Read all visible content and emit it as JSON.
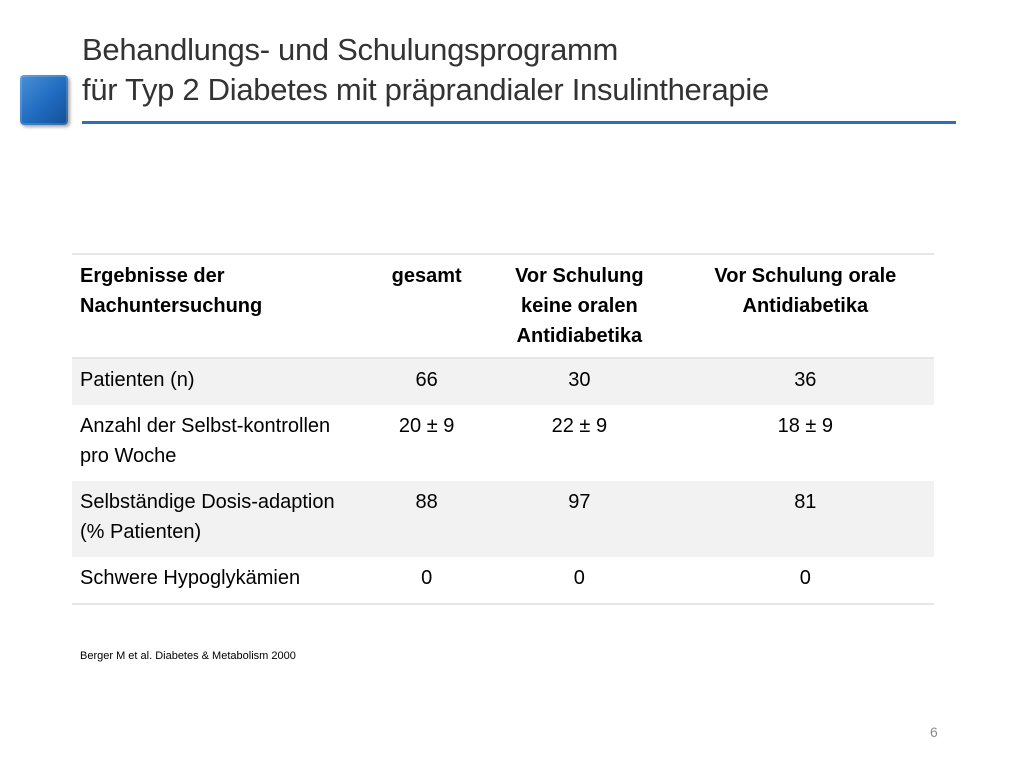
{
  "slide": {
    "title_line1": "Behandlungs- und Schulungsprogramm",
    "title_line2": "für Typ 2 Diabetes mit präprandialer Insulintherapie",
    "accent_color": "#2f6fb5"
  },
  "table": {
    "headers": [
      "Ergebnisse der Nachuntersuchung",
      "gesamt",
      "Vor Schulung keine oralen Antidiabetika",
      "Vor Schulung orale Antidiabetika"
    ],
    "rows": [
      {
        "label": "Patienten (n)",
        "values": [
          "66",
          "30",
          "36"
        ]
      },
      {
        "label": "Anzahl der Selbst-kontrollen pro Woche",
        "values": [
          "20 ± 9",
          "22 ± 9",
          "18 ± 9"
        ]
      },
      {
        "label": "Selbständige Dosis-adaption (% Patienten)",
        "values": [
          "88",
          "97",
          "81"
        ]
      },
      {
        "label": "Schwere Hypoglykämien",
        "values": [
          "0",
          "0",
          "0"
        ]
      }
    ]
  },
  "citation": "Berger M et al. Diabetes & Metabolism 2000",
  "page_number": "6"
}
